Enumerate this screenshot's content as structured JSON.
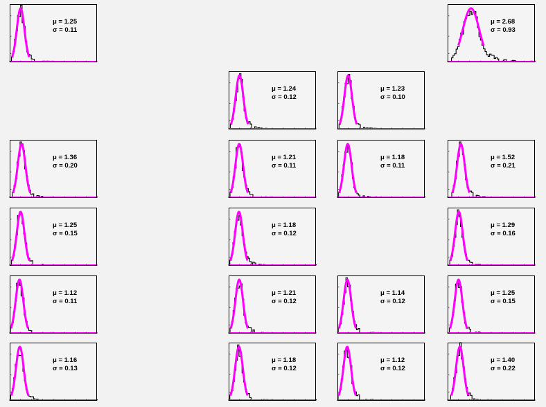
{
  "chart_data": {
    "type": "histogram-grid",
    "rows": 6,
    "cols": 5,
    "panels": [
      {
        "row": 0,
        "col": 0,
        "mu": "1.25",
        "sigma": "0.11",
        "mean": 1.25,
        "width": 0.11
      },
      {
        "row": 0,
        "col": 4,
        "mu": "2.68",
        "sigma": "0.93",
        "mean": 2.68,
        "width": 0.93
      },
      {
        "row": 1,
        "col": 2,
        "mu": "1.24",
        "sigma": "0.12",
        "mean": 1.24,
        "width": 0.12
      },
      {
        "row": 1,
        "col": 3,
        "mu": "1.23",
        "sigma": "0.10",
        "mean": 1.23,
        "width": 0.1
      },
      {
        "row": 2,
        "col": 0,
        "mu": "1.36",
        "sigma": "0.20",
        "mean": 1.36,
        "width": 0.2
      },
      {
        "row": 2,
        "col": 2,
        "mu": "1.21",
        "sigma": "0.11",
        "mean": 1.21,
        "width": 0.11
      },
      {
        "row": 2,
        "col": 3,
        "mu": "1.18",
        "sigma": "0.11",
        "mean": 1.18,
        "width": 0.11
      },
      {
        "row": 2,
        "col": 4,
        "mu": "1.52",
        "sigma": "0.21",
        "mean": 1.52,
        "width": 0.21
      },
      {
        "row": 3,
        "col": 0,
        "mu": "1.25",
        "sigma": "0.15",
        "mean": 1.25,
        "width": 0.15
      },
      {
        "row": 3,
        "col": 2,
        "mu": "1.18",
        "sigma": "0.12",
        "mean": 1.18,
        "width": 0.12
      },
      {
        "row": 3,
        "col": 4,
        "mu": "1.29",
        "sigma": "0.16",
        "mean": 1.29,
        "width": 0.16
      },
      {
        "row": 4,
        "col": 0,
        "mu": "1.12",
        "sigma": "0.11",
        "mean": 1.12,
        "width": 0.11
      },
      {
        "row": 4,
        "col": 2,
        "mu": "1.21",
        "sigma": "0.12",
        "mean": 1.21,
        "width": 0.12
      },
      {
        "row": 4,
        "col": 3,
        "mu": "1.14",
        "sigma": "0.12",
        "mean": 1.14,
        "width": 0.12
      },
      {
        "row": 4,
        "col": 4,
        "mu": "1.25",
        "sigma": "0.15",
        "mean": 1.25,
        "width": 0.15
      },
      {
        "row": 5,
        "col": 0,
        "mu": "1.16",
        "sigma": "0.13",
        "mean": 1.16,
        "width": 0.13
      },
      {
        "row": 5,
        "col": 2,
        "mu": "1.18",
        "sigma": "0.12",
        "mean": 1.18,
        "width": 0.12
      },
      {
        "row": 5,
        "col": 3,
        "mu": "1.12",
        "sigma": "0.12",
        "mean": 1.12,
        "width": 0.12
      },
      {
        "row": 5,
        "col": 4,
        "mu": "1.40",
        "sigma": "0.22",
        "mean": 1.4,
        "width": 0.22
      }
    ],
    "x_range": [
      0,
      10
    ],
    "colors": {
      "fit": "#ff00ff",
      "histogram": "#000000",
      "frame": "#000000",
      "panel": "#f4f4f4"
    }
  },
  "labels": {
    "mu_symbol": "μ",
    "sigma_symbol": "σ",
    "equals": " = "
  }
}
